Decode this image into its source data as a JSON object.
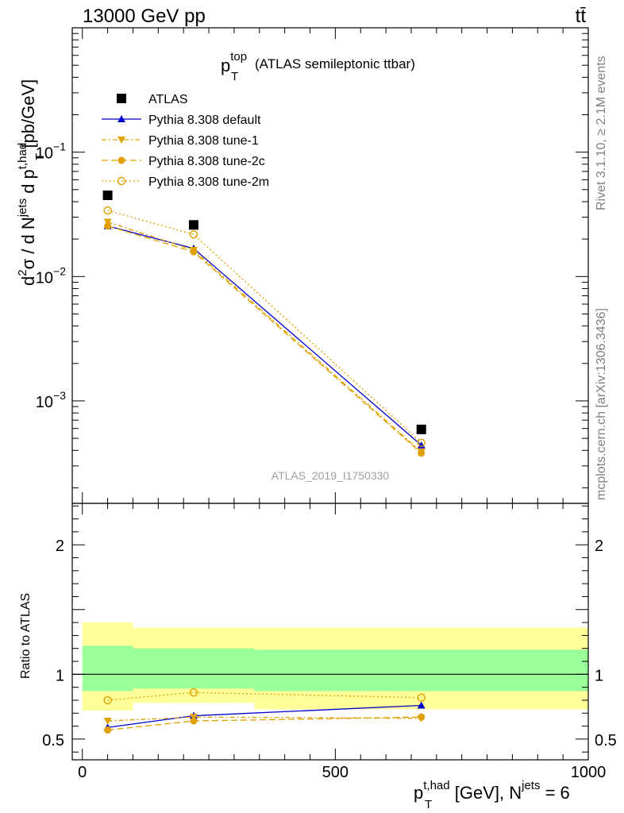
{
  "header": {
    "left": "13000 GeV pp",
    "right": "tt̄"
  },
  "plot_title": {
    "main": "p",
    "sub": "T",
    "sup": "top",
    "rest": "(ATLAS semileptonic ttbar)"
  },
  "analysis_id": "ATLAS_2019_I1750330",
  "side_text": {
    "rivet": "Rivet 3.1.10, ≥ 2.1M events",
    "mcplots": "mcplots.cern.ch [arXiv:1306.3436]"
  },
  "y_axis_label_upper": {
    "d2": "d",
    "sup2": "2",
    "sigma": "σ / d N",
    "jets": "jets",
    "dp": " d p",
    "thad": "t,had",
    "T": "T",
    "units": " [pb/GeV]"
  },
  "y_axis_label_lower": "Ratio to ATLAS",
  "x_axis_label": {
    "p": "p",
    "T": "T",
    "thad": "t,had",
    "mid": " [GeV], N",
    "jets": "jets",
    "end": " = 6"
  },
  "chart_data": [
    {
      "type": "line",
      "panel": "main",
      "y_scale": "log",
      "xlim": [
        -20,
        1000
      ],
      "ylim": [
        0.00015,
        1.0
      ],
      "yticks_major": [
        0.001,
        0.01,
        0.1
      ],
      "ytick_labels": [
        {
          "base": "10",
          "exp": "−3"
        },
        {
          "base": "10",
          "exp": "−2"
        },
        {
          "base": "10",
          "exp": "−1"
        }
      ],
      "legend_placement": "top-left",
      "series": [
        {
          "name": "ATLAS",
          "color": "#000000",
          "marker": "square",
          "line": "none",
          "x": [
            50,
            220,
            670
          ],
          "y": [
            0.045,
            0.026,
            0.00059
          ]
        },
        {
          "name": "Pythia 8.308 default",
          "color": "#0000cc",
          "marker": "triangle-up",
          "line": "solid",
          "x": [
            50,
            220,
            670
          ],
          "y": [
            0.0255,
            0.0168,
            0.00044
          ]
        },
        {
          "name": "Pythia 8.308 tune-1",
          "color": "#e0a000",
          "marker": "triangle-down",
          "line": "dashdot",
          "x": [
            50,
            220,
            670
          ],
          "y": [
            0.0275,
            0.0163,
            0.00039
          ]
        },
        {
          "name": "Pythia 8.308 tune-2c",
          "color": "#e0a000",
          "marker": "circle",
          "line": "dashed",
          "x": [
            50,
            220,
            670
          ],
          "y": [
            0.0255,
            0.0158,
            0.00038
          ]
        },
        {
          "name": "Pythia 8.308 tune-2m",
          "color": "#e0a000",
          "marker": "circle-open",
          "line": "dotted",
          "x": [
            50,
            220,
            670
          ],
          "y": [
            0.034,
            0.0218,
            0.00046
          ]
        }
      ]
    },
    {
      "type": "line",
      "panel": "ratio",
      "xlim": [
        -20,
        1000
      ],
      "ylim": [
        0.34,
        2.32
      ],
      "xticks": [
        0,
        500,
        1000
      ],
      "yticks": [
        0.5,
        1,
        2
      ],
      "bands": [
        {
          "x0": 0,
          "x1": 100,
          "yellow": [
            0.72,
            1.4
          ],
          "green": [
            0.87,
            1.22
          ]
        },
        {
          "x0": 100,
          "x1": 340,
          "yellow": [
            0.78,
            1.36
          ],
          "green": [
            0.89,
            1.2
          ]
        },
        {
          "x0": 340,
          "x1": 1000,
          "yellow": [
            0.73,
            1.36
          ],
          "green": [
            0.87,
            1.19
          ]
        }
      ],
      "series": [
        {
          "name": "Pythia 8.308 default",
          "color": "#0000cc",
          "marker": "triangle-up",
          "line": "solid",
          "x": [
            50,
            220,
            670
          ],
          "y": [
            0.59,
            0.68,
            0.76
          ]
        },
        {
          "name": "Pythia 8.308 tune-1",
          "color": "#e0a000",
          "marker": "triangle-down",
          "line": "dashdot",
          "x": [
            50,
            220,
            670
          ],
          "y": [
            0.64,
            0.67,
            0.66
          ]
        },
        {
          "name": "Pythia 8.308 tune-2c",
          "color": "#e0a000",
          "marker": "circle",
          "line": "dashed",
          "x": [
            50,
            220,
            670
          ],
          "y": [
            0.57,
            0.64,
            0.67
          ]
        },
        {
          "name": "Pythia 8.308 tune-2m",
          "color": "#e0a000",
          "marker": "circle-open",
          "line": "dotted",
          "x": [
            50,
            220,
            670
          ],
          "y": [
            0.8,
            0.86,
            0.82
          ]
        }
      ]
    }
  ]
}
